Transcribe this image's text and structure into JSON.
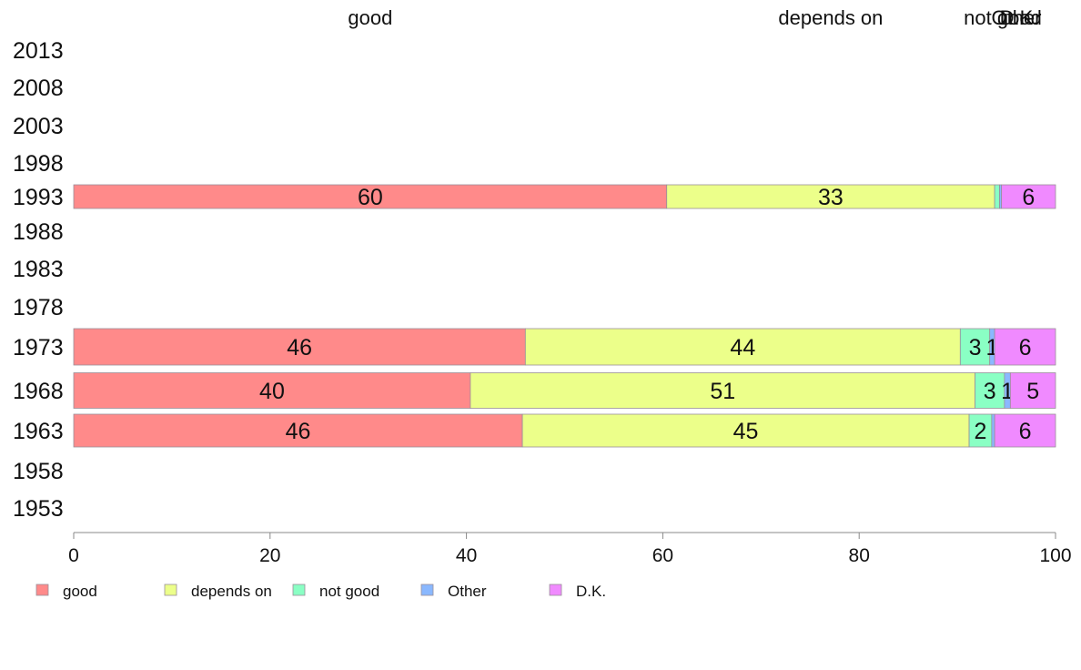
{
  "chart_data": {
    "type": "bar",
    "orientation": "horizontal",
    "stacked": true,
    "categories": [
      "2013",
      "2008",
      "2003",
      "1998",
      "1993",
      "1988",
      "1983",
      "1978",
      "1973",
      "1968",
      "1963",
      "1958",
      "1953"
    ],
    "series": [
      {
        "name": "good",
        "color": "#ff8a8a",
        "values": [
          null,
          null,
          null,
          null,
          60.4,
          null,
          null,
          null,
          46.0,
          40.4,
          45.7,
          null,
          null
        ],
        "labels": [
          "",
          "",
          "",
          "",
          "60",
          "",
          "",
          "",
          "46",
          "40",
          "46",
          "",
          ""
        ]
      },
      {
        "name": "depends on",
        "color": "#ecff8a",
        "values": [
          null,
          null,
          null,
          null,
          33.4,
          null,
          null,
          null,
          44.3,
          51.4,
          45.5,
          null,
          null
        ],
        "labels": [
          "",
          "",
          "",
          "",
          "33",
          "",
          "",
          "",
          "44",
          "51",
          "45",
          "",
          ""
        ]
      },
      {
        "name": "not good",
        "color": "#8affc4",
        "values": [
          null,
          null,
          null,
          null,
          0.5,
          null,
          null,
          null,
          3.0,
          3.0,
          2.3,
          null,
          null
        ],
        "labels": [
          "",
          "",
          "",
          "",
          "",
          "",
          "",
          "",
          "3",
          "3",
          "2",
          "",
          ""
        ]
      },
      {
        "name": "Other",
        "color": "#8ab8ff",
        "values": [
          null,
          null,
          null,
          null,
          0.2,
          null,
          null,
          null,
          0.5,
          0.6,
          0.3,
          null,
          null
        ],
        "labels": [
          "",
          "",
          "",
          "",
          "",
          "",
          "",
          "",
          "1",
          "1",
          "",
          "",
          ""
        ]
      },
      {
        "name": "D.K.",
        "color": "#f08aff",
        "values": [
          null,
          null,
          null,
          null,
          5.5,
          null,
          null,
          null,
          6.2,
          4.6,
          6.2,
          null,
          null
        ],
        "labels": [
          "",
          "",
          "",
          "",
          "6",
          "",
          "",
          "",
          "6",
          "5",
          "6",
          "",
          ""
        ]
      }
    ],
    "top_labels": [
      "good",
      "depends on",
      "not good",
      "Other",
      "D.K."
    ],
    "xlim": [
      0,
      100
    ],
    "xticks": [
      0,
      20,
      40,
      60,
      80,
      100
    ],
    "xlabel": "",
    "ylabel": "",
    "title": "",
    "grid": false,
    "legend_position": "bottom-left"
  }
}
